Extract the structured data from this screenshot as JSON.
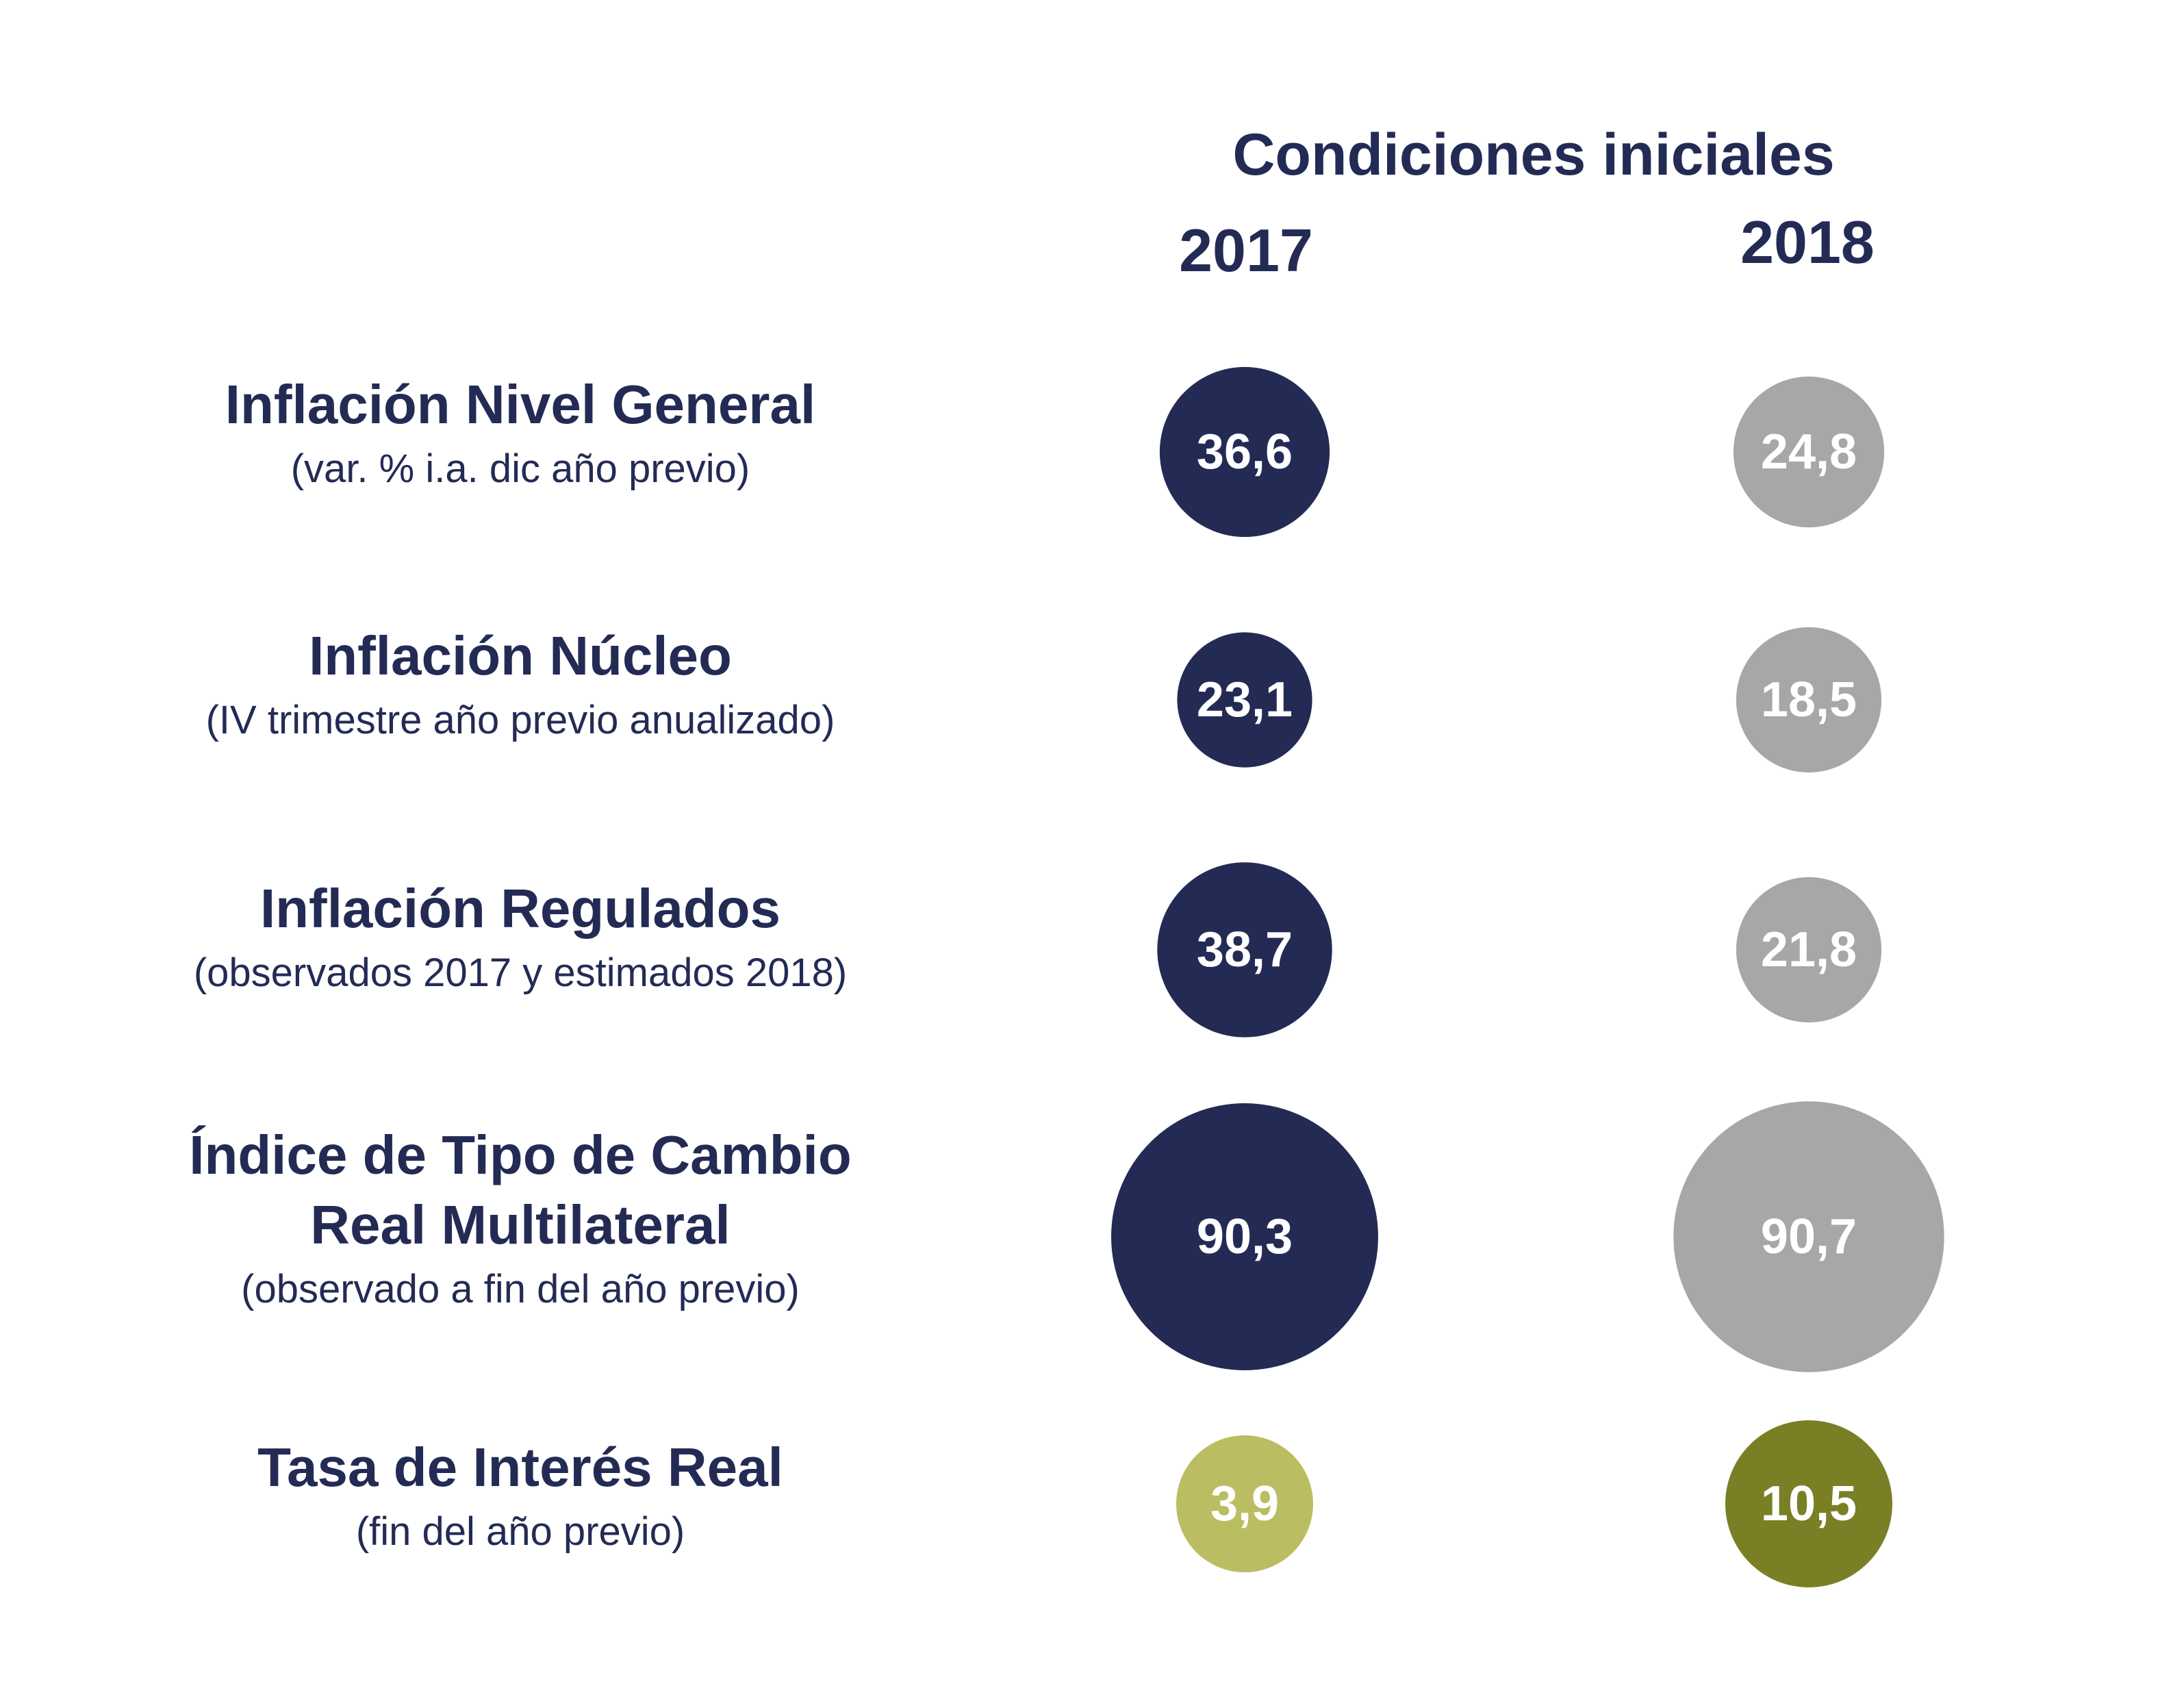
{
  "chart_data": {
    "type": "bubble",
    "title": "Condiciones iniciales",
    "columns": [
      "2017",
      "2018"
    ],
    "rows": [
      {
        "label": "Inflación Nivel General",
        "note": "(var. % i.a. dic año previo)",
        "values": [
          36.6,
          24.8
        ],
        "value_labels": [
          "36,6",
          "24,8"
        ]
      },
      {
        "label": "Inflación Núcleo",
        "note": "(IV trimestre año previo anualizado)",
        "values": [
          23.1,
          18.5
        ],
        "value_labels": [
          "23,1",
          "18,5"
        ]
      },
      {
        "label": "Inflación Regulados",
        "note": "(observados 2017 y estimados 2018)",
        "values": [
          38.7,
          21.8
        ],
        "value_labels": [
          "38,7",
          "21,8"
        ]
      },
      {
        "label_lines": [
          "Índice de Tipo de Cambio",
          "Real Multilateral"
        ],
        "note": "(observado a fin del año previo)",
        "values": [
          90.3,
          90.7
        ],
        "value_labels": [
          "90,3",
          "90,7"
        ]
      },
      {
        "label": "Tasa de Interés Real",
        "note": "(fin del año previo)",
        "values": [
          3.9,
          10.5
        ],
        "value_labels": [
          "3,9",
          "10,5"
        ]
      }
    ],
    "colors": {
      "2017": "#232b55",
      "2018": "#a7a7a7",
      "rate_2017": "#bbbd62",
      "rate_2018": "#7a7f25",
      "text": "#232b55"
    }
  }
}
